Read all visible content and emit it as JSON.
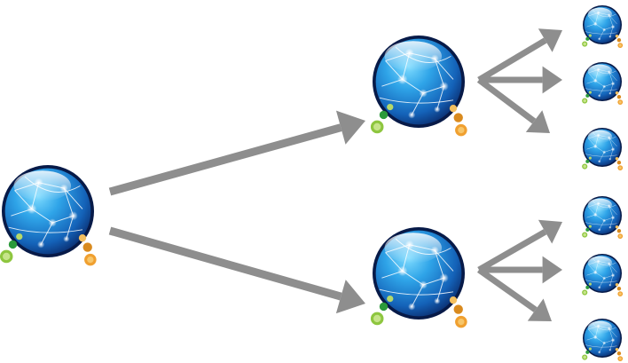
{
  "diagram": {
    "type": "tree",
    "nodes": [
      {
        "id": "root",
        "level": 0,
        "icon": "network-globe-icon"
      },
      {
        "id": "mid-top",
        "level": 1,
        "parent": "root",
        "icon": "network-globe-icon"
      },
      {
        "id": "mid-bottom",
        "level": 1,
        "parent": "root",
        "icon": "network-globe-icon"
      },
      {
        "id": "leaf-1",
        "level": 2,
        "parent": "mid-top",
        "icon": "network-globe-icon"
      },
      {
        "id": "leaf-2",
        "level": 2,
        "parent": "mid-top",
        "icon": "network-globe-icon"
      },
      {
        "id": "leaf-3",
        "level": 2,
        "parent": "mid-top",
        "icon": "network-globe-icon"
      },
      {
        "id": "leaf-4",
        "level": 2,
        "parent": "mid-bottom",
        "icon": "network-globe-icon"
      },
      {
        "id": "leaf-5",
        "level": 2,
        "parent": "mid-bottom",
        "icon": "network-globe-icon"
      },
      {
        "id": "leaf-6",
        "level": 2,
        "parent": "mid-bottom",
        "icon": "network-globe-icon"
      }
    ],
    "colors": {
      "arrow": "#8e8e8e",
      "globe_light": "#5ec8f2",
      "globe_mid": "#1672c4",
      "globe_dark": "#0a2a6a",
      "rim": "#06184a",
      "dot_green": "#8ec63f",
      "dot_orange": "#f0a030"
    }
  }
}
